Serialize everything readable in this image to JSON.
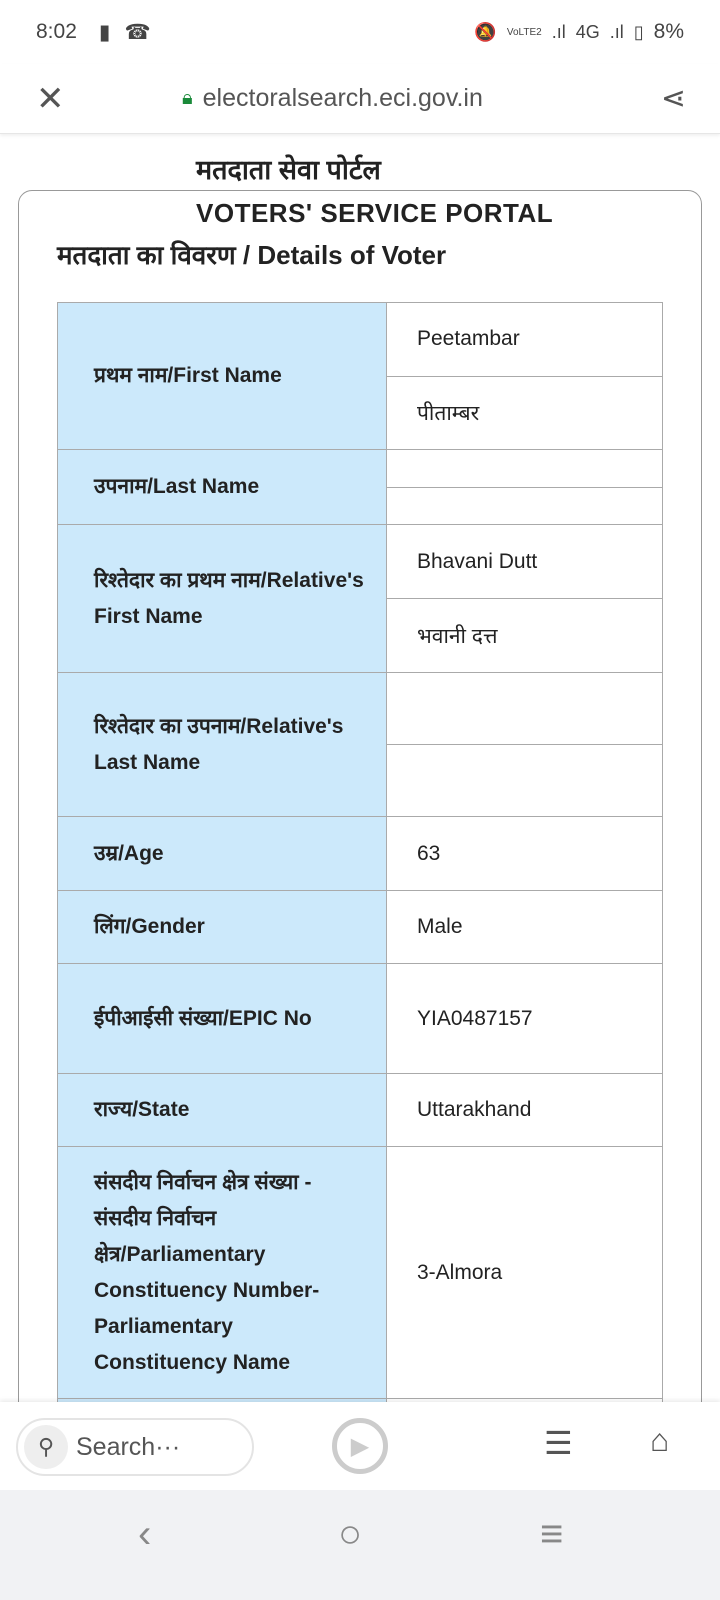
{
  "status": {
    "time": "8:02",
    "icons": [
      "battery-alert-icon",
      "missed-call-icon"
    ],
    "right_icons": [
      "mute-icon",
      "volte-icon",
      "signal-icon",
      "4g-signal-icon",
      "battery-icon"
    ],
    "network": "4G",
    "battery": "8%"
  },
  "browser": {
    "url": "electoralsearch.eci.gov.in",
    "search_placeholder": "Search···"
  },
  "page": {
    "title_hi": "मतदाता सेवा पोर्टल",
    "title_en": "VOTERS' SERVICE PORTAL",
    "section": "मतदाता का विवरण / Details of Voter"
  },
  "rows": [
    {
      "label": "प्रथम नाम/First Name",
      "values": [
        "Peetambar",
        "पीताम्बर"
      ]
    },
    {
      "label": "उपनाम/Last Name",
      "values": [
        "",
        ""
      ]
    },
    {
      "label": "रिश्तेदार का प्रथम नाम/Relative's First Name",
      "values": [
        "Bhavani Dutt",
        "भवानी दत्त"
      ]
    },
    {
      "label": "रिश्तेदार का उपनाम/Relative's Last Name",
      "values": [
        "",
        ""
      ]
    },
    {
      "label": "उम्र/Age",
      "values": [
        "63"
      ]
    },
    {
      "label": "लिंग/Gender",
      "values": [
        "Male"
      ]
    },
    {
      "label": "ईपीआईसी संख्या/EPIC No",
      "values": [
        "YIA0487157"
      ]
    },
    {
      "label": "राज्य/State",
      "values": [
        "Uttarakhand"
      ]
    },
    {
      "label": "संसदीय निर्वाचन क्षेत्र संख्या - संसदीय निर्वाचन क्षेत्र/Parliamentary Constituency Number-Parliamentary Constituency Name",
      "values": [
        "3-Almora"
      ]
    }
  ]
}
